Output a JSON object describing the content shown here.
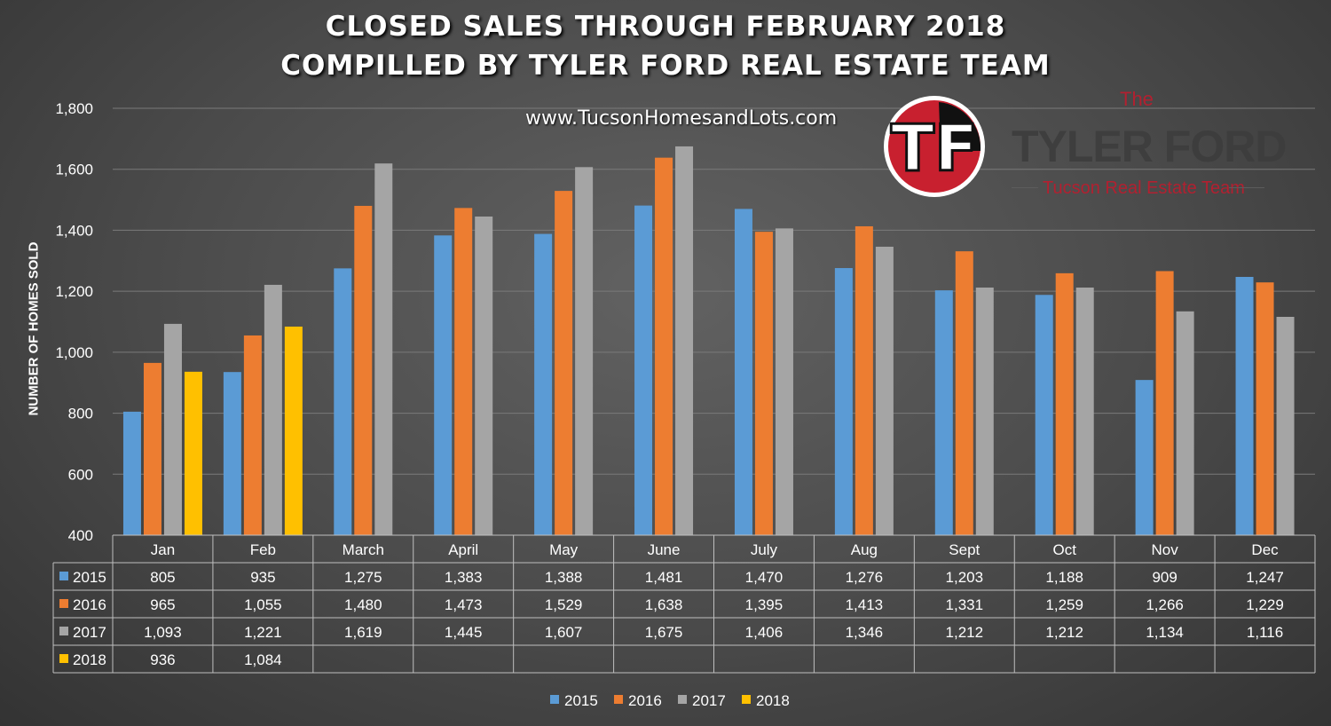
{
  "header": {
    "title_line1": "CLOSED SALES THROUGH FEBRUARY 2018",
    "title_line2": "COMPILLED BY TYLER FORD REAL ESTATE TEAM",
    "website": "www.TucsonHomesandLots.com"
  },
  "brand": {
    "logo_text": "TF",
    "the": "The",
    "name": "TYLER FORD",
    "subtitle": "Tucson Real Estate Team",
    "colors": {
      "red": "#c8202f",
      "black": "#111111",
      "white": "#ffffff"
    }
  },
  "chart_data": {
    "type": "bar",
    "ylabel": "NUMBER OF HOMES SOLD",
    "ylim": [
      400,
      1800
    ],
    "yticks": [
      "400",
      "600",
      "800",
      "1,000",
      "1,200",
      "1,400",
      "1,600",
      "1,800"
    ],
    "grid": true,
    "legend_position": "bottom",
    "categories": [
      "Jan",
      "Feb",
      "March",
      "April",
      "May",
      "June",
      "July",
      "Aug",
      "Sept",
      "Oct",
      "Nov",
      "Dec"
    ],
    "series": [
      {
        "name": "2015",
        "color": "#5b9bd5",
        "values": [
          805,
          935,
          1275,
          1383,
          1388,
          1481,
          1470,
          1276,
          1203,
          1188,
          909,
          1247
        ],
        "labels": [
          "805",
          "935",
          "1,275",
          "1,383",
          "1,388",
          "1,481",
          "1,470",
          "1,276",
          "1,203",
          "1,188",
          "909",
          "1,247"
        ]
      },
      {
        "name": "2016",
        "color": "#ed7d31",
        "values": [
          965,
          1055,
          1480,
          1473,
          1529,
          1638,
          1395,
          1413,
          1331,
          1259,
          1266,
          1229
        ],
        "labels": [
          "965",
          "1,055",
          "1,480",
          "1,473",
          "1,529",
          "1,638",
          "1,395",
          "1,413",
          "1,331",
          "1,259",
          "1,266",
          "1,229"
        ]
      },
      {
        "name": "2017",
        "color": "#a5a5a5",
        "values": [
          1093,
          1221,
          1619,
          1445,
          1607,
          1675,
          1406,
          1346,
          1212,
          1212,
          1134,
          1116
        ],
        "labels": [
          "1,093",
          "1,221",
          "1,619",
          "1,445",
          "1,607",
          "1,675",
          "1,406",
          "1,346",
          "1,212",
          "1,212",
          "1,134",
          "1,116"
        ]
      },
      {
        "name": "2018",
        "color": "#ffc000",
        "values": [
          936,
          1084,
          null,
          null,
          null,
          null,
          null,
          null,
          null,
          null,
          null,
          null
        ],
        "labels": [
          "936",
          "1,084",
          "",
          "",
          "",
          "",
          "",
          "",
          "",
          "",
          "",
          ""
        ]
      }
    ]
  }
}
